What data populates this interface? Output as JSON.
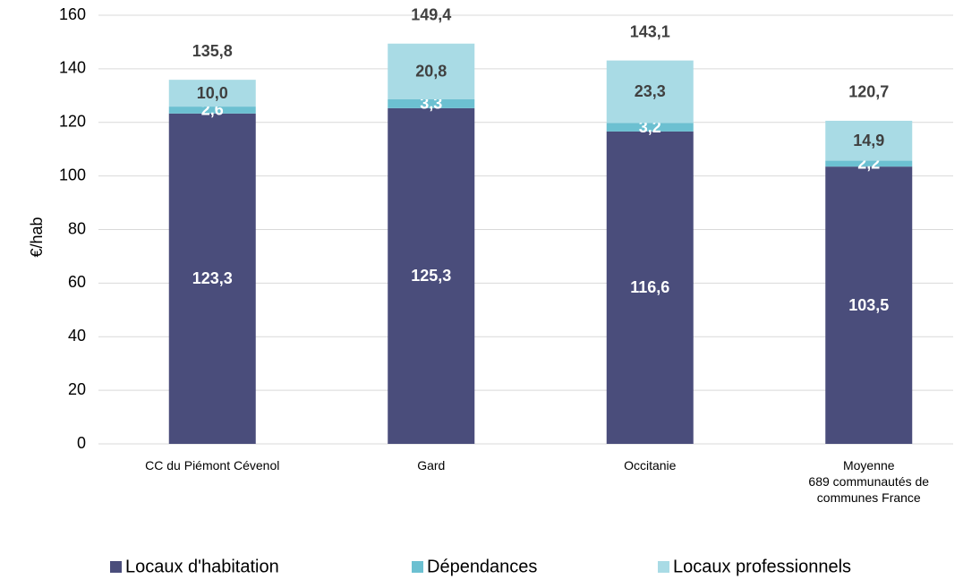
{
  "chart_data": {
    "type": "stacked_bar",
    "y_label": "€/hab",
    "categories": [
      "CC du Piémont Cévenol",
      "Gard",
      "Occitanie",
      "Moyenne\n689 communautés de\ncommunes France"
    ],
    "series": [
      {
        "name": "Locaux d'habitation",
        "color": "#4a4d7b",
        "label_color": "#ffffff",
        "values": [
          123.3,
          125.3,
          116.6,
          103.5
        ],
        "value_labels": [
          "123,3",
          "125,3",
          "116,6",
          "103,5"
        ]
      },
      {
        "name": "Dépendances",
        "color": "#6cc0d1",
        "label_color": "#ffffff",
        "values": [
          2.6,
          3.3,
          3.2,
          2.2
        ],
        "value_labels": [
          "2,6",
          "3,3",
          "3,2",
          "2,2"
        ]
      },
      {
        "name": "Locaux professionnels",
        "color": "#a9dbe5",
        "label_color": "#404040",
        "values": [
          10.0,
          20.8,
          23.3,
          14.9
        ],
        "value_labels": [
          "10,0",
          "20,8",
          "23,3",
          "14,9"
        ]
      }
    ],
    "totals": {
      "values": [
        135.8,
        149.4,
        143.1,
        120.7
      ],
      "value_labels": [
        "135,8",
        "149,4",
        "143,1",
        "120,7"
      ]
    },
    "ylim": [
      0,
      160
    ],
    "yticks": [
      0,
      20,
      40,
      60,
      80,
      100,
      120,
      140,
      160
    ],
    "grid": true,
    "legend": "bottom"
  }
}
